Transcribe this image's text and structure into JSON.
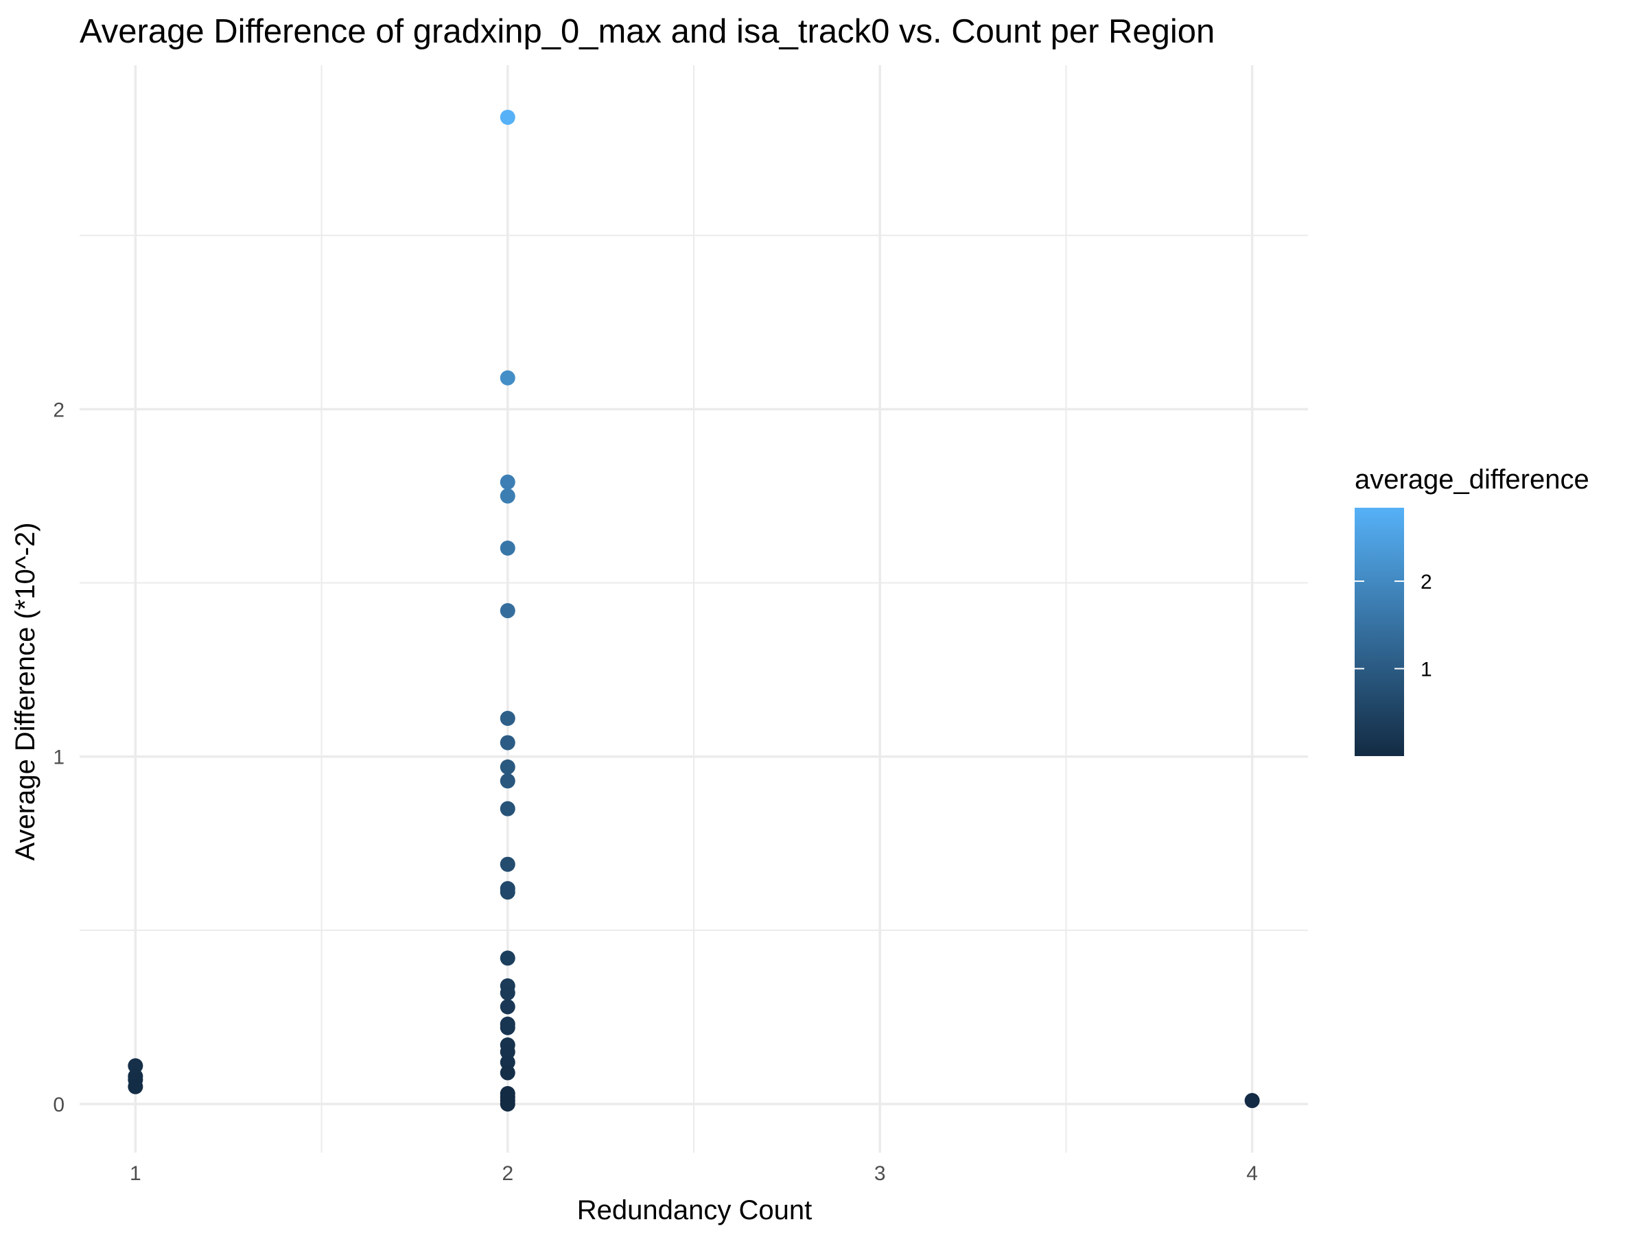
{
  "chart_data": {
    "type": "scatter",
    "title": "Average Difference of gradxinp_0_max and isa_track0 vs. Count per Region",
    "xlabel": "Redundancy Count",
    "ylabel": "Average Difference (*10^-2)",
    "xlim": [
      0.85,
      4.15
    ],
    "ylim": [
      -0.14,
      2.99
    ],
    "x_ticks": [
      {
        "value": 1,
        "label": "1"
      },
      {
        "value": 2,
        "label": "2"
      },
      {
        "value": 3,
        "label": "3"
      },
      {
        "value": 4,
        "label": "4"
      }
    ],
    "y_ticks": [
      {
        "value": 0,
        "label": "0"
      },
      {
        "value": 1,
        "label": "1"
      },
      {
        "value": 2,
        "label": "2"
      }
    ],
    "x_minor": [
      1.5,
      2.5,
      3.5
    ],
    "y_minor": [
      0.5,
      1.5,
      2.5
    ],
    "grid": true,
    "color_scale": {
      "name": "average_difference",
      "low_color": "#132B43",
      "high_color": "#56B1F7",
      "min": 0.0,
      "max": 2.84,
      "ticks": [
        {
          "value": 1,
          "label": "1"
        },
        {
          "value": 2,
          "label": "2"
        }
      ],
      "legend_position": "right"
    },
    "points": [
      {
        "x": 2,
        "y": 2.84
      },
      {
        "x": 2,
        "y": 2.09
      },
      {
        "x": 2,
        "y": 1.79
      },
      {
        "x": 2,
        "y": 1.75
      },
      {
        "x": 2,
        "y": 1.6
      },
      {
        "x": 2,
        "y": 1.42
      },
      {
        "x": 2,
        "y": 1.11
      },
      {
        "x": 2,
        "y": 1.04
      },
      {
        "x": 2,
        "y": 0.97
      },
      {
        "x": 2,
        "y": 0.93
      },
      {
        "x": 2,
        "y": 0.85
      },
      {
        "x": 2,
        "y": 0.69
      },
      {
        "x": 2,
        "y": 0.62
      },
      {
        "x": 2,
        "y": 0.61
      },
      {
        "x": 2,
        "y": 0.42
      },
      {
        "x": 2,
        "y": 0.34
      },
      {
        "x": 2,
        "y": 0.32
      },
      {
        "x": 2,
        "y": 0.28
      },
      {
        "x": 2,
        "y": 0.23
      },
      {
        "x": 2,
        "y": 0.22
      },
      {
        "x": 2,
        "y": 0.17
      },
      {
        "x": 2,
        "y": 0.15
      },
      {
        "x": 2,
        "y": 0.12
      },
      {
        "x": 2,
        "y": 0.09
      },
      {
        "x": 2,
        "y": 0.03
      },
      {
        "x": 2,
        "y": 0.02
      },
      {
        "x": 2,
        "y": 0.01
      },
      {
        "x": 2,
        "y": 0.0
      },
      {
        "x": 1,
        "y": 0.11
      },
      {
        "x": 1,
        "y": 0.08
      },
      {
        "x": 1,
        "y": 0.07
      },
      {
        "x": 1,
        "y": 0.05
      },
      {
        "x": 4,
        "y": 0.01
      }
    ]
  }
}
